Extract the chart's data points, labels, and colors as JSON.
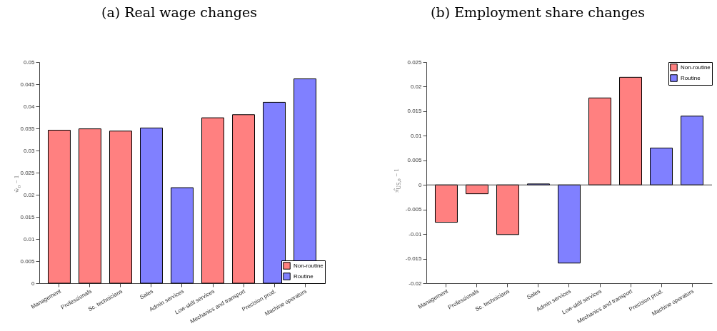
{
  "chart_data": [
    {
      "type": "bar",
      "title": "(a) Real wage changes",
      "ylabel": "ŵ$_{o}$ − 1",
      "stacked": true,
      "legend": "bottom right",
      "categories": [
        "Management",
        "Professionals",
        "Sc. technicians",
        "Sales",
        "Admin services",
        "Low-skill services",
        "Mechanics and transport",
        "Precision prod.",
        "Machine operators"
      ],
      "series": [
        {
          "name": "Non-routine",
          "color": "#ff8080",
          "values": [
            0.0346,
            0.0349,
            0.0344,
            null,
            null,
            0.0374,
            0.0381,
            null,
            null
          ]
        },
        {
          "name": "Routine",
          "color": "#8080ff",
          "values": [
            null,
            null,
            null,
            0.0351,
            0.0216,
            null,
            null,
            0.0409,
            0.0462
          ]
        }
      ],
      "ylim": [
        0,
        0.05
      ],
      "yticks": [
        0,
        0.005,
        0.01,
        0.015,
        0.02,
        0.025,
        0.03,
        0.035,
        0.04,
        0.045,
        0.05
      ],
      "grid": false
    },
    {
      "type": "bar",
      "title": "(b) Employment share changes",
      "ylabel": "π̂$_{US,o}$ − 1",
      "stacked": true,
      "legend": "top right",
      "categories": [
        "Management",
        "Professionals",
        "Sc. technicians",
        "Sales",
        "Admin services",
        "Low-skill services",
        "Mechanics and transport",
        "Precision prod.",
        "Machine operators"
      ],
      "series": [
        {
          "name": "Non-routine",
          "color": "#ff8080",
          "values": [
            -0.0076,
            -0.0018,
            -0.0101,
            null,
            null,
            0.0177,
            0.0219,
            null,
            null
          ]
        },
        {
          "name": "Routine",
          "color": "#8080ff",
          "values": [
            null,
            null,
            null,
            0.0002,
            -0.0159,
            null,
            null,
            0.0075,
            0.014
          ]
        }
      ],
      "ylim": [
        -0.02,
        0.025
      ],
      "yticks": [
        -0.02,
        -0.015,
        -0.01,
        -0.005,
        0,
        0.005,
        0.01,
        0.015,
        0.02,
        0.025
      ],
      "ref_lines": [
        {
          "axis": "y",
          "value": 0,
          "color": "#444444"
        }
      ],
      "grid": false
    }
  ]
}
